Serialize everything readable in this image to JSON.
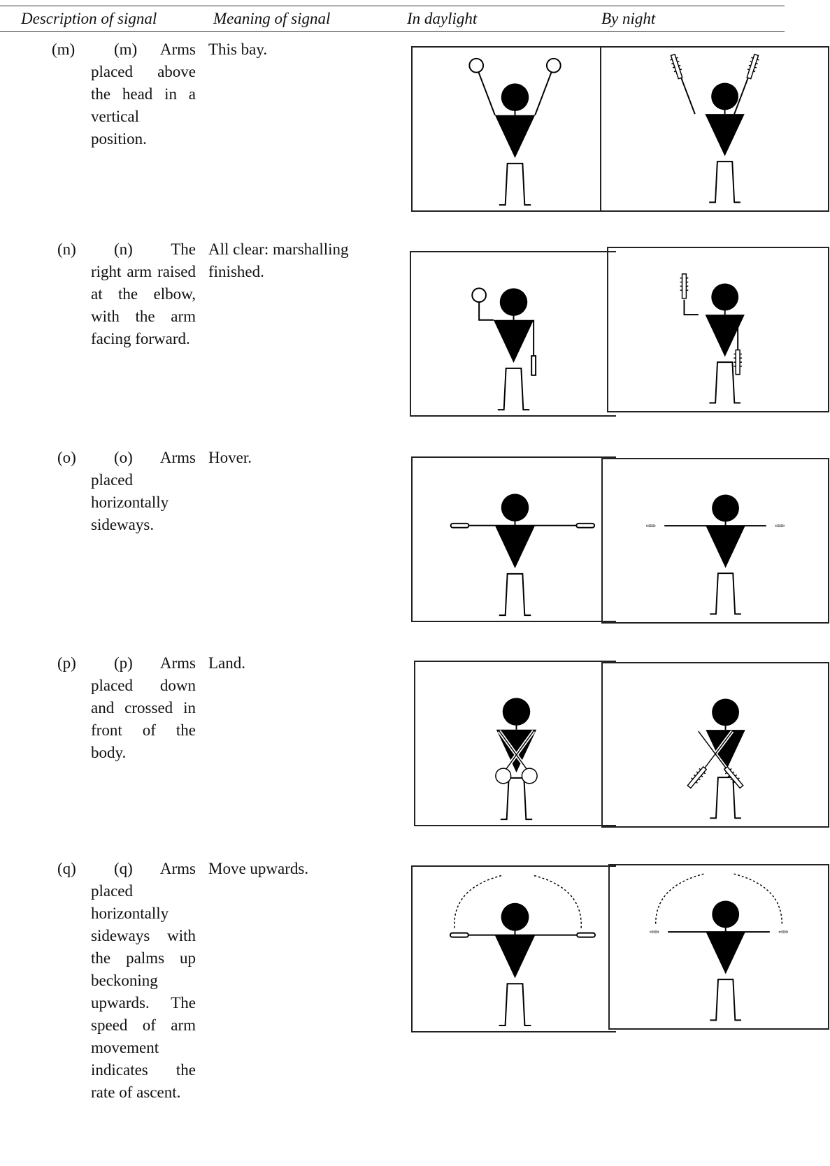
{
  "header": {
    "columns": [
      "Description of signal",
      "Meaning of signal",
      "In daylight",
      "By night"
    ]
  },
  "rows": [
    {
      "label": "(m)",
      "description": "(m) Arms placed above the head in a vertical position.",
      "meaning": "This bay."
    },
    {
      "label": "(n)",
      "description": "(n) The right arm raised at the elbow, with the arm facing forward.",
      "meaning": "All clear: marshalling finished."
    },
    {
      "label": "(o)",
      "description": "(o) Arms placed horizontally sideways.",
      "meaning": "Hover."
    },
    {
      "label": "(p)",
      "description": "(p) Arms placed down and crossed in front of the body.",
      "meaning": "Land."
    },
    {
      "label": "(q)",
      "description": "(q) Arms placed horizontally sideways with the palms up beckoning upwards. The speed of arm movement indicates the rate of ascent.",
      "meaning": "Move upwards."
    }
  ]
}
